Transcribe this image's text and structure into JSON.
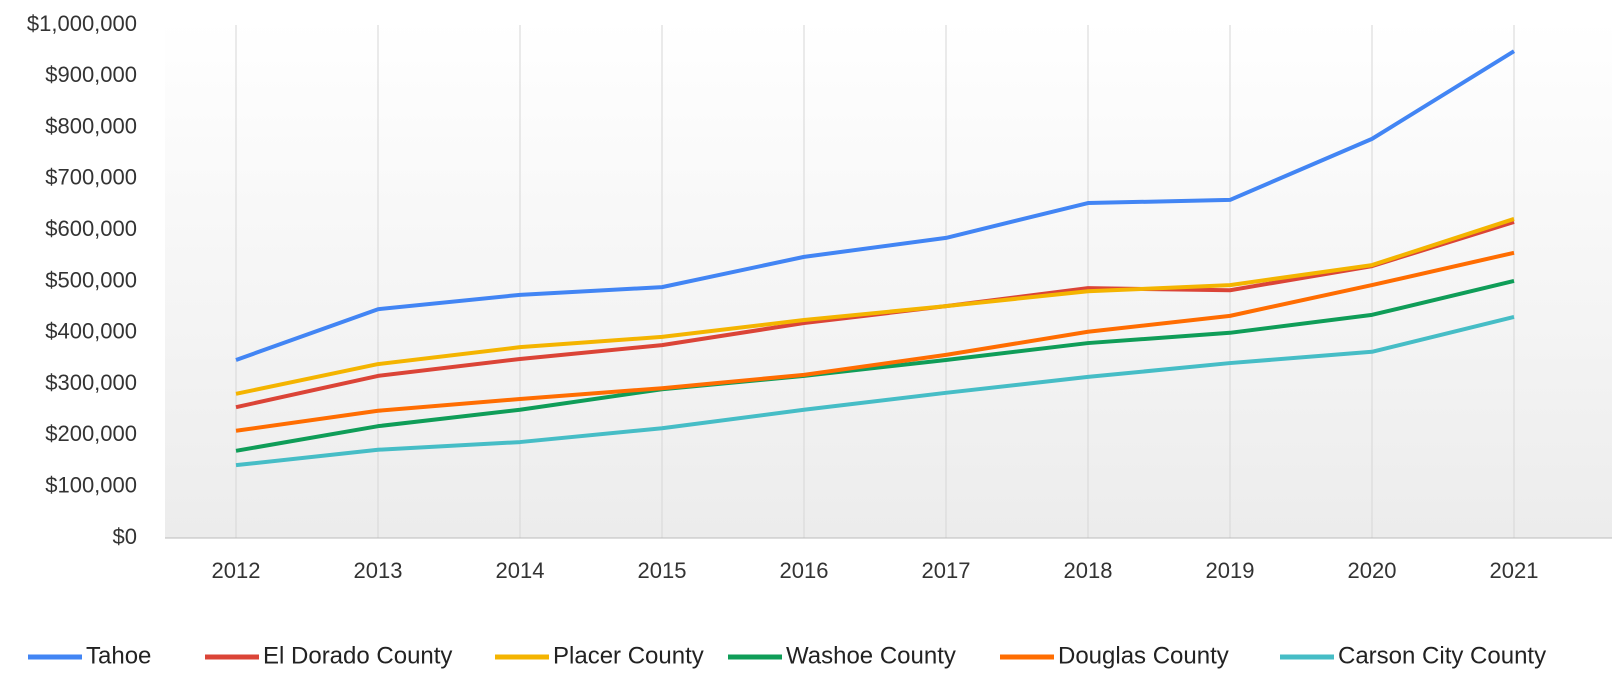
{
  "chart_data": {
    "type": "line",
    "categories": [
      "2012",
      "2013",
      "2014",
      "2015",
      "2016",
      "2017",
      "2018",
      "2019",
      "2020",
      "2021"
    ],
    "ylim": [
      0,
      1000000
    ],
    "yticks": [
      {
        "value": 0,
        "label": "$0"
      },
      {
        "value": 100000,
        "label": "$100,000"
      },
      {
        "value": 200000,
        "label": "$200,000"
      },
      {
        "value": 300000,
        "label": "$300,000"
      },
      {
        "value": 400000,
        "label": "$400,000"
      },
      {
        "value": 500000,
        "label": "$500,000"
      },
      {
        "value": 600000,
        "label": "$600,000"
      },
      {
        "value": 700000,
        "label": "$700,000"
      },
      {
        "value": 800000,
        "label": "$800,000"
      },
      {
        "value": 900000,
        "label": "$900,000"
      },
      {
        "value": 1000000,
        "label": "$1,000,000"
      }
    ],
    "legend": "bottom",
    "series": [
      {
        "name": "Tahoe",
        "color": "#4285f4",
        "values": [
          347000,
          446000,
          474000,
          489000,
          548000,
          585000,
          653000,
          659000,
          778000,
          949000
        ]
      },
      {
        "name": "El Dorado County",
        "color": "#db4437",
        "values": [
          255000,
          316000,
          349000,
          376000,
          419000,
          452000,
          487000,
          483000,
          530000,
          616000
        ]
      },
      {
        "name": "Placer County",
        "color": "#f4b400",
        "values": [
          281000,
          339000,
          372000,
          392000,
          425000,
          452000,
          481000,
          493000,
          532000,
          622000
        ]
      },
      {
        "name": "Washoe County",
        "color": "#0f9d58",
        "values": [
          170000,
          218000,
          250000,
          290000,
          316000,
          347000,
          380000,
          400000,
          435000,
          501000
        ]
      },
      {
        "name": "Douglas County",
        "color": "#ff6d01",
        "values": [
          209000,
          248000,
          271000,
          292000,
          318000,
          357000,
          402000,
          433000,
          493000,
          556000
        ]
      },
      {
        "name": "Carson City County",
        "color": "#46bdc6",
        "values": [
          142000,
          172000,
          187000,
          214000,
          250000,
          283000,
          314000,
          341000,
          363000,
          431000
        ]
      }
    ]
  }
}
